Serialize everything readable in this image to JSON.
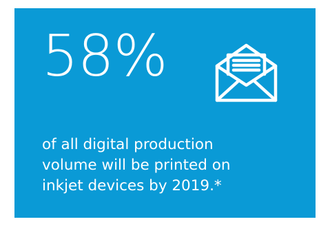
{
  "background_color": "#0a9ad6",
  "text_color": "#ffffff",
  "stat": {
    "value": "58%"
  },
  "icon": "open-envelope-icon",
  "caption": {
    "lines": [
      "of all digital production",
      "volume will be printed on",
      "inkjet devices by 2019.*"
    ]
  }
}
